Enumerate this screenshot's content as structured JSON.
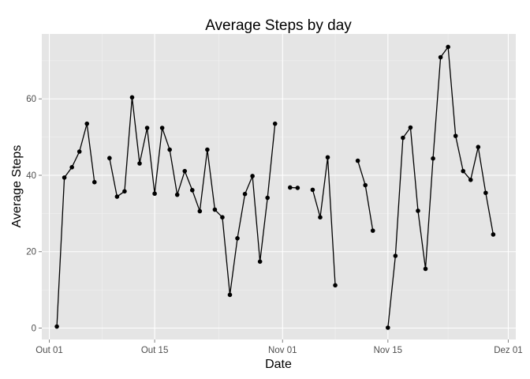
{
  "chart_data": {
    "type": "line",
    "title": "Average Steps by day",
    "xlabel": "Date",
    "ylabel": "Average Steps",
    "x_axis": {
      "type": "date",
      "range": [
        "2012-09-30",
        "2012-12-02"
      ],
      "ticks": [
        {
          "date": "2012-10-01",
          "label": "Out 01"
        },
        {
          "date": "2012-10-15",
          "label": "Out 15"
        },
        {
          "date": "2012-11-01",
          "label": "Nov 01"
        },
        {
          "date": "2012-11-15",
          "label": "Nov 15"
        },
        {
          "date": "2012-12-01",
          "label": "Dez 01"
        }
      ]
    },
    "y_axis": {
      "range": [
        -3,
        77
      ],
      "ticks": [
        0,
        20,
        40,
        60
      ]
    },
    "grid": true,
    "series": [
      {
        "name": "",
        "color": "#000000",
        "points": [
          {
            "x": "2012-10-02",
            "y": 0.4
          },
          {
            "x": "2012-10-03",
            "y": 39.4
          },
          {
            "x": "2012-10-04",
            "y": 42.1
          },
          {
            "x": "2012-10-05",
            "y": 46.2
          },
          {
            "x": "2012-10-06",
            "y": 53.5
          },
          {
            "x": "2012-10-07",
            "y": 38.2
          },
          {
            "x": "2012-10-08",
            "y": null
          },
          {
            "x": "2012-10-09",
            "y": 44.5
          },
          {
            "x": "2012-10-10",
            "y": 34.4
          },
          {
            "x": "2012-10-11",
            "y": 35.8
          },
          {
            "x": "2012-10-12",
            "y": 60.4
          },
          {
            "x": "2012-10-13",
            "y": 43.1
          },
          {
            "x": "2012-10-14",
            "y": 52.4
          },
          {
            "x": "2012-10-15",
            "y": 35.2
          },
          {
            "x": "2012-10-16",
            "y": 52.4
          },
          {
            "x": "2012-10-17",
            "y": 46.7
          },
          {
            "x": "2012-10-18",
            "y": 34.9
          },
          {
            "x": "2012-10-19",
            "y": 41.1
          },
          {
            "x": "2012-10-20",
            "y": 36.1
          },
          {
            "x": "2012-10-21",
            "y": 30.6
          },
          {
            "x": "2012-10-22",
            "y": 46.7
          },
          {
            "x": "2012-10-23",
            "y": 31.0
          },
          {
            "x": "2012-10-24",
            "y": 29.0
          },
          {
            "x": "2012-10-25",
            "y": 8.7
          },
          {
            "x": "2012-10-26",
            "y": 23.5
          },
          {
            "x": "2012-10-27",
            "y": 35.1
          },
          {
            "x": "2012-10-28",
            "y": 39.8
          },
          {
            "x": "2012-10-29",
            "y": 17.4
          },
          {
            "x": "2012-10-30",
            "y": 34.1
          },
          {
            "x": "2012-10-31",
            "y": 53.5
          },
          {
            "x": "2012-11-01",
            "y": null
          },
          {
            "x": "2012-11-02",
            "y": 36.8
          },
          {
            "x": "2012-11-03",
            "y": 36.7
          },
          {
            "x": "2012-11-04",
            "y": null
          },
          {
            "x": "2012-11-05",
            "y": 36.2
          },
          {
            "x": "2012-11-06",
            "y": 29.0
          },
          {
            "x": "2012-11-07",
            "y": 44.7
          },
          {
            "x": "2012-11-08",
            "y": 11.2
          },
          {
            "x": "2012-11-09",
            "y": null
          },
          {
            "x": "2012-11-10",
            "y": null
          },
          {
            "x": "2012-11-11",
            "y": 43.8
          },
          {
            "x": "2012-11-12",
            "y": 37.4
          },
          {
            "x": "2012-11-13",
            "y": 25.5
          },
          {
            "x": "2012-11-14",
            "y": null
          },
          {
            "x": "2012-11-15",
            "y": 0.1
          },
          {
            "x": "2012-11-16",
            "y": 18.9
          },
          {
            "x": "2012-11-17",
            "y": 49.8
          },
          {
            "x": "2012-11-18",
            "y": 52.5
          },
          {
            "x": "2012-11-19",
            "y": 30.7
          },
          {
            "x": "2012-11-20",
            "y": 15.5
          },
          {
            "x": "2012-11-21",
            "y": 44.4
          },
          {
            "x": "2012-11-22",
            "y": 70.9
          },
          {
            "x": "2012-11-23",
            "y": 73.6
          },
          {
            "x": "2012-11-24",
            "y": 50.3
          },
          {
            "x": "2012-11-25",
            "y": 41.1
          },
          {
            "x": "2012-11-26",
            "y": 38.8
          },
          {
            "x": "2012-11-27",
            "y": 47.4
          },
          {
            "x": "2012-11-28",
            "y": 35.4
          },
          {
            "x": "2012-11-29",
            "y": 24.5
          }
        ]
      }
    ],
    "colors": {
      "panel_background": "#e5e5e5",
      "grid_major": "#ffffff",
      "grid_minor": "#f2f2f2",
      "line": "#000000",
      "tick_text": "#4d4d4d"
    }
  }
}
